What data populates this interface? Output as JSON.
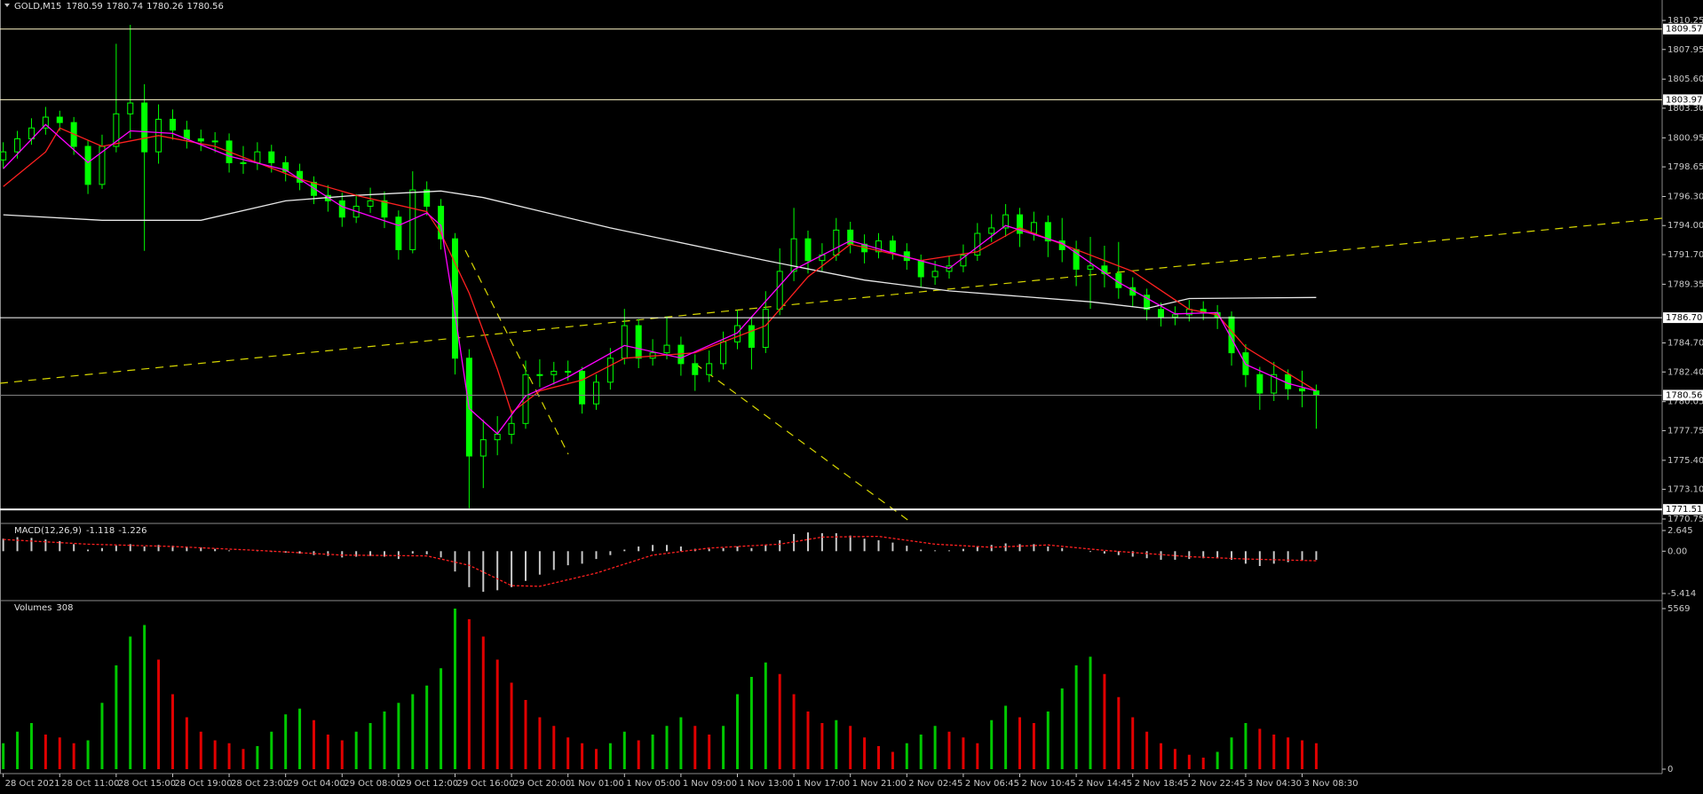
{
  "chart_data": [
    {
      "type": "candlestick",
      "title": "GOLD,M15",
      "quote": [
        1780.59,
        1780.74,
        1780.26,
        1780.56
      ],
      "color": "#00ff00",
      "ylim": [
        1770.47,
        1811.87
      ],
      "yticks": [
        1810.25,
        1807.95,
        {
          "value": 1805.6,
          "label": "1805.60"
        },
        {
          "value": 1803.3,
          "label": "1803.30"
        },
        1800.95,
        1798.65,
        {
          "value": 1796.3,
          "label": "1796.30"
        },
        {
          "value": 1794,
          "label": "1794.00"
        },
        {
          "value": 1791.7,
          "label": "1791.70"
        },
        1789.35,
        {
          "value": 1784.7,
          "label": "1784.70"
        },
        {
          "value": 1782.4,
          "label": "1782.40"
        },
        1780.05,
        1777.75,
        {
          "value": 1775.4,
          "label": "1775.40"
        },
        {
          "value": 1773.1,
          "label": "1773.10"
        },
        1770.75
      ],
      "grid": false,
      "open": [
        1799.2,
        1799.84,
        1800.87,
        1801.73,
        1802.59,
        1802.16,
        1800.27,
        1797.26,
        1800.27,
        1802.85,
        1803.71,
        1799.84,
        1802.42,
        1801.56,
        1800.87,
        1800.7,
        1800.7,
        1798.98,
        1798.98,
        1799.84,
        1798.98,
        1798.29,
        1797.43,
        1796.39,
        1795.96,
        1794.67,
        1795.53,
        1795.96,
        1794.67,
        1792.09,
        1796.82,
        1795.53,
        1792.95,
        1783.49,
        1775.74,
        1777.03,
        1777.46,
        1778.32,
        1782.19,
        1782.19,
        1782.45,
        1782.45,
        1779.87,
        1781.59,
        1783.49,
        1786.07,
        1783.49,
        1783.92,
        1784.52,
        1783.06,
        1782.19,
        1783.06,
        1784.78,
        1786.07,
        1784.35,
        1787.36,
        1790.37,
        1792.95,
        1791.23,
        1791.66,
        1793.64,
        1792.52,
        1791.92,
        1792.78,
        1791.92,
        1791.23,
        1789.94,
        1790.37,
        1790.8,
        1791.66,
        1793.38,
        1793.81,
        1794.85,
        1793.38,
        1794.24,
        1792.78,
        1792.09,
        1790.54,
        1790.8,
        1790.2,
        1789.08,
        1788.48,
        1787.36,
        1786.76,
        1786.93,
        1787.36,
        1787.1,
        1786.76,
        1783.92,
        1782.19,
        1780.73,
        1782.19,
        1781.07,
        1780.9
      ],
      "high": [
        1800.6,
        1801.5,
        1802.5,
        1803.4,
        1803.1,
        1802.6,
        1800.8,
        1801.2,
        1808.4,
        1809.9,
        1805.2,
        1803.6,
        1803.2,
        1802.3,
        1801.6,
        1801.4,
        1801.3,
        1800.3,
        1800.6,
        1800.4,
        1799.5,
        1798.9,
        1797.9,
        1797.2,
        1796.6,
        1796.5,
        1797.0,
        1796.7,
        1795.2,
        1798.3,
        1797.5,
        1796.1,
        1793.4,
        1784.2,
        1778.6,
        1778.9,
        1779.4,
        1783.3,
        1783.4,
        1783.2,
        1783.3,
        1782.8,
        1782.2,
        1784.3,
        1787.4,
        1786.6,
        1785.0,
        1786.8,
        1785.2,
        1783.8,
        1784.1,
        1785.6,
        1787.3,
        1786.8,
        1788.8,
        1792.2,
        1795.4,
        1793.6,
        1792.6,
        1794.6,
        1794.3,
        1793.3,
        1793.4,
        1793.2,
        1792.6,
        1791.7,
        1791.2,
        1791.6,
        1792.5,
        1794.2,
        1794.9,
        1795.7,
        1795.4,
        1795.1,
        1794.8,
        1794.6,
        1792.8,
        1793.1,
        1792.4,
        1792.7,
        1789.9,
        1789.0,
        1787.9,
        1787.6,
        1788.1,
        1788.0,
        1787.7,
        1787.2,
        1784.6,
        1782.8,
        1783.2,
        1782.6,
        1782.5,
        1781.4
      ],
      "low": [
        1798.5,
        1799.3,
        1800.4,
        1801.2,
        1801.5,
        1799.6,
        1796.5,
        1796.9,
        1799.8,
        1800.9,
        1792.0,
        1798.9,
        1800.8,
        1800.1,
        1799.9,
        1799.8,
        1798.2,
        1798.1,
        1798.4,
        1798.2,
        1797.5,
        1796.8,
        1795.7,
        1795.1,
        1793.9,
        1794.2,
        1795.0,
        1793.8,
        1791.3,
        1791.8,
        1794.8,
        1792.1,
        1782.2,
        1771.6,
        1773.2,
        1775.8,
        1776.7,
        1777.9,
        1781.2,
        1781.4,
        1781.7,
        1779.1,
        1779.4,
        1781.0,
        1783.0,
        1782.7,
        1782.9,
        1783.4,
        1782.1,
        1780.9,
        1781.6,
        1782.6,
        1784.2,
        1782.6,
        1783.9,
        1786.9,
        1789.6,
        1790.2,
        1790.4,
        1791.2,
        1791.8,
        1791.0,
        1791.4,
        1791.3,
        1790.5,
        1789.1,
        1789.3,
        1789.8,
        1790.3,
        1791.2,
        1792.7,
        1793.1,
        1792.3,
        1792.8,
        1791.5,
        1791.1,
        1789.2,
        1787.4,
        1789.1,
        1788.2,
        1787.6,
        1786.5,
        1786.0,
        1786.1,
        1786.4,
        1786.5,
        1785.8,
        1782.9,
        1781.2,
        1779.4,
        1780.1,
        1780.2,
        1779.6,
        1777.9
      ],
      "close": [
        1799.84,
        1800.87,
        1801.73,
        1802.59,
        1802.16,
        1800.27,
        1797.26,
        1800.27,
        1802.85,
        1803.71,
        1799.84,
        1802.42,
        1801.56,
        1800.87,
        1800.7,
        1800.7,
        1798.98,
        1798.98,
        1799.84,
        1798.98,
        1798.29,
        1797.43,
        1796.39,
        1795.96,
        1794.67,
        1795.53,
        1795.96,
        1794.67,
        1792.09,
        1796.82,
        1795.53,
        1792.95,
        1783.49,
        1775.74,
        1777.03,
        1777.46,
        1778.32,
        1782.19,
        1782.19,
        1782.45,
        1782.45,
        1779.87,
        1781.59,
        1783.49,
        1786.07,
        1783.49,
        1783.92,
        1784.52,
        1783.06,
        1782.19,
        1783.06,
        1784.78,
        1786.07,
        1784.35,
        1787.36,
        1790.37,
        1792.95,
        1791.23,
        1791.66,
        1793.64,
        1792.52,
        1791.92,
        1792.78,
        1791.92,
        1791.23,
        1789.94,
        1790.37,
        1790.8,
        1791.66,
        1793.38,
        1793.81,
        1794.85,
        1793.38,
        1794.24,
        1792.78,
        1792.09,
        1790.54,
        1790.8,
        1790.2,
        1789.08,
        1788.48,
        1787.36,
        1786.76,
        1786.93,
        1787.36,
        1787.1,
        1786.76,
        1783.92,
        1782.19,
        1780.73,
        1782.19,
        1781.07,
        1780.9,
        1780.56
      ],
      "ma_lines": [
        {
          "color": "#e8e8e8",
          "x": [
            0,
            7,
            14,
            20,
            25,
            31,
            34,
            43,
            54,
            61,
            67,
            77,
            81,
            84,
            93
          ],
          "values": [
            1794.85,
            1794.42,
            1794.42,
            1795.96,
            1796.39,
            1796.74,
            1796.22,
            1793.81,
            1791.23,
            1789.68,
            1788.82,
            1787.96,
            1787.44,
            1788.22,
            1788.3
          ]
        },
        {
          "color": "#ff2020",
          "x": [
            0,
            3,
            4,
            7,
            11,
            15,
            21,
            25,
            30,
            31,
            33,
            35,
            36,
            38,
            41,
            44,
            49,
            54,
            57,
            60,
            65,
            69,
            72,
            75,
            80,
            84,
            86,
            88,
            93
          ],
          "values": [
            1797.09,
            1799.84,
            1801.73,
            1800.27,
            1801.13,
            1800.27,
            1797.69,
            1796.39,
            1795.1,
            1793.38,
            1788.65,
            1782.62,
            1779.18,
            1780.9,
            1781.76,
            1783.49,
            1783.92,
            1786.07,
            1789.94,
            1792.52,
            1791.23,
            1791.92,
            1793.81,
            1792.52,
            1790.37,
            1787.36,
            1786.93,
            1784.35,
            1780.9
          ]
        },
        {
          "color": "#ff00ff",
          "x": [
            0,
            3,
            6,
            9,
            12,
            16,
            20,
            24,
            28,
            30,
            31,
            32,
            33,
            35,
            37,
            40,
            44,
            48,
            52,
            56,
            60,
            64,
            67,
            71,
            75,
            79,
            83,
            86,
            88,
            91,
            93
          ],
          "values": [
            1798.5,
            1802.0,
            1799.0,
            1801.5,
            1801.3,
            1799.5,
            1798.4,
            1795.5,
            1794.0,
            1795.0,
            1794.0,
            1787.0,
            1779.5,
            1777.5,
            1780.5,
            1782.0,
            1784.5,
            1783.5,
            1785.5,
            1790.5,
            1792.8,
            1791.5,
            1790.6,
            1794.0,
            1792.6,
            1789.5,
            1787.0,
            1787.1,
            1783.0,
            1781.5,
            1780.9
          ]
        }
      ],
      "levels": [
        1809.57,
        1803.97,
        {
          "value": 1786.7,
          "label": "1786.70"
        },
        1780.56,
        1771.51
      ],
      "level_colors": [
        "#fff8c8",
        "#fff8c8",
        "#ffffff",
        "#808080",
        "#ffffff"
      ]
    },
    {
      "type": "macd",
      "title": "MACD(12,26,9)",
      "quote": [
        -1.118,
        -1.226
      ],
      "color": "#c8c8c8",
      "signal_color": "#ff2020",
      "ylim": [
        -6.21,
        3.44
      ],
      "yticks": [
        2.645,
        {
          "value": 0,
          "label": "0.00"
        },
        -5.414
      ],
      "values": [
        1.6,
        1.8,
        1.7,
        1.5,
        1.3,
        0.9,
        0.2,
        0.4,
        0.7,
        0.9,
        0.6,
        0.8,
        0.7,
        0.6,
        0.5,
        0.3,
        0.1,
        0.0,
        0.1,
        -0.1,
        -0.2,
        -0.3,
        -0.5,
        -0.6,
        -0.8,
        -0.7,
        -0.6,
        -0.7,
        -1.0,
        -0.3,
        -0.4,
        -0.8,
        -2.6,
        -4.6,
        -5.2,
        -5.0,
        -4.6,
        -3.8,
        -3.0,
        -2.4,
        -1.8,
        -1.6,
        -1.0,
        -0.5,
        0.2,
        0.6,
        0.8,
        0.8,
        0.6,
        0.3,
        0.3,
        0.4,
        0.6,
        0.4,
        0.8,
        1.4,
        2.2,
        2.4,
        2.3,
        2.3,
        2.0,
        1.6,
        1.4,
        1.1,
        0.7,
        0.2,
        0.1,
        0.1,
        0.3,
        0.6,
        0.8,
        1.0,
        0.9,
        0.9,
        0.6,
        0.4,
        0.0,
        -0.1,
        -0.3,
        -0.5,
        -0.7,
        -0.9,
        -1.1,
        -1.1,
        -1.0,
        -0.9,
        -0.9,
        -1.1,
        -1.6,
        -1.9,
        -1.6,
        -1.4,
        -1.2,
        -1.118
      ],
      "signal": {
        "x": [
          0,
          6,
          12,
          18,
          24,
          30,
          33,
          36,
          38,
          42,
          46,
          50,
          55,
          58,
          62,
          66,
          70,
          74,
          78,
          84,
          88,
          93
        ],
        "values": [
          1.5,
          0.9,
          0.6,
          0.1,
          -0.5,
          -0.6,
          -1.8,
          -4.4,
          -4.5,
          -2.8,
          -0.5,
          0.4,
          0.9,
          1.8,
          1.9,
          0.9,
          0.5,
          0.8,
          0.1,
          -0.7,
          -1.0,
          -1.226
        ]
      }
    },
    {
      "type": "volume",
      "title": "Volumes",
      "quote": [
        308
      ],
      "up_color": "#00c800",
      "down_color": "#e00000",
      "ylim": [
        -154,
        5815
      ],
      "yticks": [
        5569,
        0
      ],
      "values": [
        900,
        1300,
        1600,
        1200,
        1100,
        900,
        1000,
        2300,
        3600,
        4600,
        5000,
        3800,
        2600,
        1800,
        1300,
        1000,
        900,
        700,
        800,
        1300,
        1900,
        2100,
        1700,
        1200,
        1000,
        1300,
        1600,
        2000,
        2300,
        2600,
        2900,
        3500,
        5569,
        5200,
        4600,
        3800,
        3000,
        2400,
        1800,
        1500,
        1100,
        900,
        700,
        900,
        1300,
        1000,
        1200,
        1500,
        1800,
        1500,
        1200,
        1500,
        2600,
        3200,
        3700,
        3300,
        2600,
        2000,
        1600,
        1700,
        1500,
        1100,
        800,
        600,
        900,
        1200,
        1500,
        1300,
        1100,
        900,
        1700,
        2200,
        1800,
        1600,
        2000,
        2800,
        3600,
        3900,
        3300,
        2500,
        1800,
        1300,
        900,
        700,
        500,
        400,
        600,
        1100,
        1600,
        1400,
        1200,
        1100,
        1000,
        900
      ],
      "xlim": [
        -0.23,
        117.5
      ],
      "xticks": [
        {
          "value": 0,
          "label": "28 Oct 2021"
        },
        {
          "value": 4,
          "label": "28 Oct 11:00"
        },
        {
          "value": 8,
          "label": "28 Oct 15:00"
        },
        {
          "value": 12,
          "label": "28 Oct 19:00"
        },
        {
          "value": 16,
          "label": "28 Oct 23:00"
        },
        {
          "value": 20,
          "label": "29 Oct 04:00"
        },
        {
          "value": 24,
          "label": "29 Oct 08:00"
        },
        {
          "value": 28,
          "label": "29 Oct 12:00"
        },
        {
          "value": 32,
          "label": "29 Oct 16:00"
        },
        {
          "value": 36,
          "label": "29 Oct 20:00"
        },
        {
          "value": 40,
          "label": "1 Nov 01:00"
        },
        {
          "value": 44,
          "label": "1 Nov 05:00"
        },
        {
          "value": 48,
          "label": "1 Nov 09:00"
        },
        {
          "value": 52,
          "label": "1 Nov 13:00"
        },
        {
          "value": 56,
          "label": "1 Nov 17:00"
        },
        {
          "value": 60,
          "label": "1 Nov 21:00"
        },
        {
          "value": 64,
          "label": "2 Nov 02:45"
        },
        {
          "value": 68,
          "label": "2 Nov 06:45"
        },
        {
          "value": 72,
          "label": "2 Nov 10:45"
        },
        {
          "value": 76,
          "label": "2 Nov 14:45"
        },
        {
          "value": 80,
          "label": "2 Nov 18:45"
        },
        {
          "value": 84,
          "label": "2 Nov 22:45"
        },
        {
          "value": 88,
          "label": "3 Nov 04:30"
        },
        {
          "value": 92,
          "label": "3 Nov 08:30"
        }
      ]
    }
  ]
}
